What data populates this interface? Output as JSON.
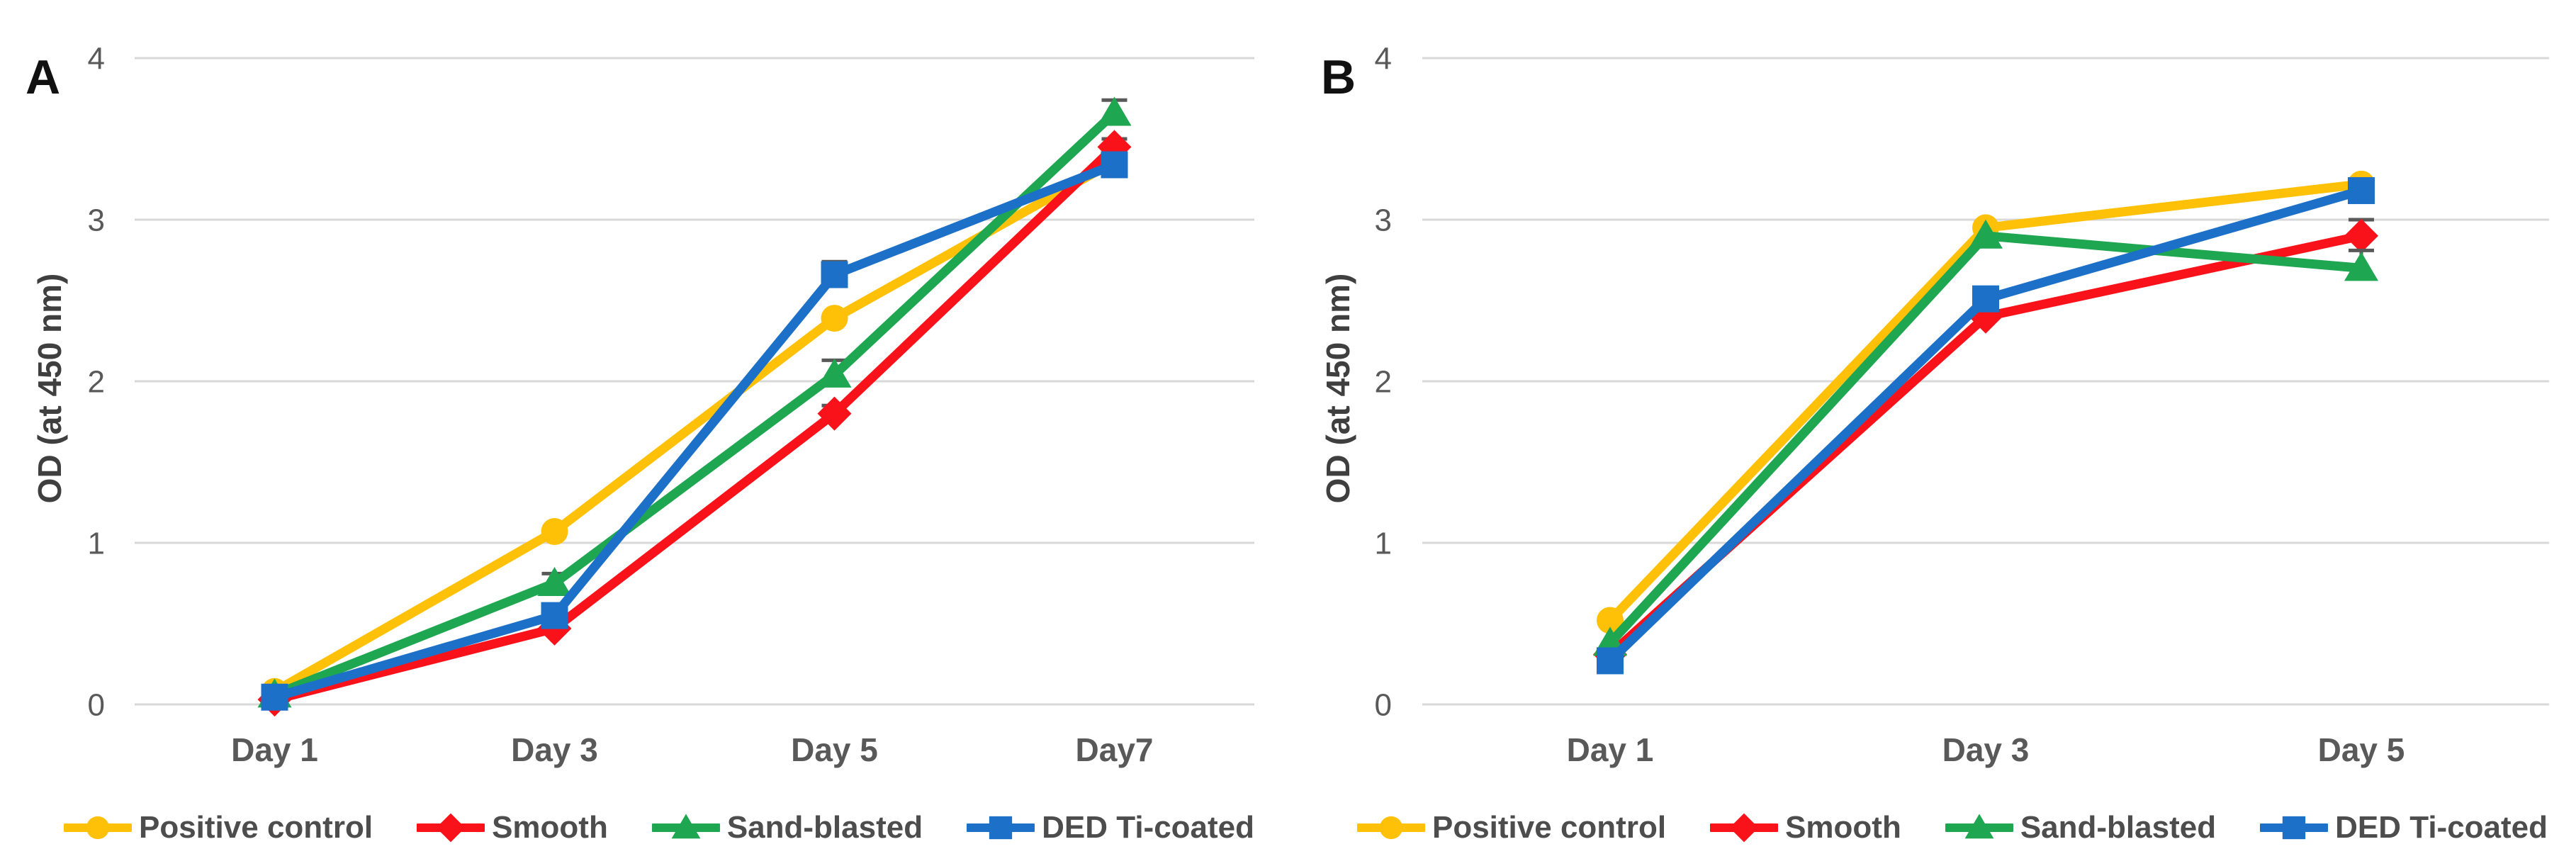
{
  "chart_data": [
    {
      "type": "line",
      "panel_label": "A",
      "ylabel": "OD (at 450 nm)",
      "categories": [
        "Day 1",
        "Day 3",
        "Day 5",
        "Day7"
      ],
      "ylim": [
        0,
        4
      ],
      "yticks": [
        "0",
        "1",
        "2",
        "3",
        "4"
      ],
      "grid": true,
      "legend_position": "bottom",
      "series": [
        {
          "name": "Positive control",
          "marker": "circle",
          "color": "#FFC008",
          "values": [
            0.08,
            1.07,
            2.39,
            3.36
          ],
          "errors_up": [
            0,
            0,
            0,
            0
          ]
        },
        {
          "name": "Smooth",
          "marker": "diamond",
          "color": "#FA121B",
          "values": [
            0.03,
            0.47,
            1.8,
            3.45
          ],
          "errors_up": [
            0,
            0,
            0.05,
            0.05
          ]
        },
        {
          "name": "Sand-blasted",
          "marker": "triangle",
          "color": "#1EA750",
          "values": [
            0.06,
            0.75,
            2.04,
            3.66
          ],
          "errors_up": [
            0,
            0.06,
            0.09,
            0.08
          ]
        },
        {
          "name": "DED Ti-coated",
          "marker": "square",
          "color": "#1C70C8",
          "values": [
            0.045,
            0.55,
            2.66,
            3.34
          ],
          "errors_up": [
            0,
            0,
            0.08,
            0
          ]
        }
      ]
    },
    {
      "type": "line",
      "panel_label": "B",
      "ylabel": "OD (at 450 nm)",
      "categories": [
        "Day 1",
        "Day 3",
        "Day 5"
      ],
      "ylim": [
        0,
        4
      ],
      "yticks": [
        "0",
        "1",
        "2",
        "3",
        "4"
      ],
      "grid": true,
      "legend_position": "bottom",
      "series": [
        {
          "name": "Positive control",
          "marker": "circle",
          "color": "#FFC008",
          "values": [
            0.52,
            2.95,
            3.22
          ],
          "errors_up": [
            0,
            0,
            0
          ]
        },
        {
          "name": "Smooth",
          "marker": "diamond",
          "color": "#FA121B",
          "values": [
            0.31,
            2.4,
            2.9
          ],
          "errors_up": [
            0,
            0,
            0.1
          ]
        },
        {
          "name": "Sand-blasted",
          "marker": "triangle",
          "color": "#1EA750",
          "values": [
            0.38,
            2.9,
            2.7
          ],
          "errors_up": [
            0,
            0,
            0.11
          ]
        },
        {
          "name": "DED Ti-coated",
          "marker": "square",
          "color": "#1C70C8",
          "values": [
            0.27,
            2.51,
            3.18
          ],
          "errors_up": [
            0,
            0,
            0.05
          ]
        }
      ]
    }
  ],
  "colors": {
    "gridline": "#D9D9D9",
    "tick_text": "#595959",
    "category_text": "#595959",
    "axis_title_text": "#3F3F3F",
    "legend_text": "#4D4D4D",
    "error_bar": "#595959",
    "panel_label_text": "#111111"
  }
}
